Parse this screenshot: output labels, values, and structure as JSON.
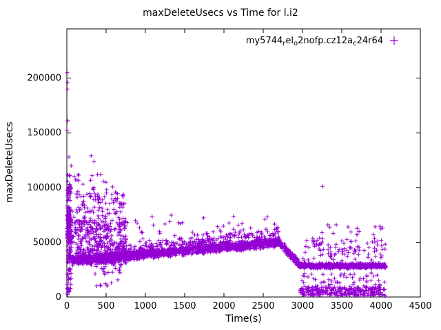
{
  "chart_data": {
    "type": "scatter",
    "title": "maxDeleteUsecs vs Time for l.i2",
    "xlabel": "Time(s)",
    "ylabel": "maxDeleteUsecs",
    "xlim": [
      0,
      4500
    ],
    "ylim": [
      0,
      245000
    ],
    "xticks": [
      0,
      500,
      1000,
      1500,
      2000,
      2500,
      3000,
      3500,
      4000,
      4500
    ],
    "yticks": [
      0,
      50000,
      100000,
      150000,
      200000
    ],
    "grid": false,
    "legend_position": "top-right-inside",
    "series": [
      {
        "name": "my5744_rel_o2nofp.cz12a_c24r64",
        "label_parts": [
          {
            "t": "my5744",
            "sub": false
          },
          {
            "t": "r",
            "sub": true
          },
          {
            "t": "el",
            "sub": false
          },
          {
            "t": "o",
            "sub": true
          },
          {
            "t": "2nofp.cz12a",
            "sub": false
          },
          {
            "t": "c",
            "sub": true
          },
          {
            "t": "24r64",
            "sub": false
          }
        ],
        "marker": "plus",
        "color": "#9400d3",
        "rng_seed": 42,
        "outlier_points": [
          [
            4,
            205000
          ],
          [
            9,
            196000
          ],
          [
            6,
            190000
          ],
          [
            12,
            161000
          ],
          [
            3,
            152000
          ],
          [
            27,
            128000
          ],
          [
            55,
            120000
          ],
          [
            95,
            110000
          ],
          [
            130,
            107000
          ],
          [
            205,
            103000
          ],
          [
            310,
            129000
          ],
          [
            345,
            124000
          ],
          [
            430,
            112000
          ],
          [
            505,
            98000
          ],
          [
            620,
            96000
          ],
          [
            1470,
            68000
          ],
          [
            2230,
            67000
          ],
          [
            2520,
            71000
          ],
          [
            3255,
            101000
          ],
          [
            3430,
            66000
          ],
          [
            3580,
            64000
          ],
          [
            3720,
            60000
          ],
          [
            3900,
            57000
          ],
          [
            4020,
            63000
          ]
        ],
        "density_bands": [
          {
            "x_min": 2,
            "x_max": 55,
            "y_min": 2000,
            "y_max": 112000,
            "count": 130
          },
          {
            "x_min": 2,
            "x_max": 55,
            "y_min": 55000,
            "y_max": 75000,
            "count": 60
          },
          {
            "x_min": 20,
            "x_max": 760,
            "y_min": 30000,
            "y_max": 70000,
            "count": 320
          },
          {
            "x_min": 60,
            "x_max": 760,
            "y_min": 60000,
            "y_max": 95000,
            "count": 130
          },
          {
            "x_min": 100,
            "x_max": 600,
            "y_min": 90000,
            "y_max": 112000,
            "count": 22
          },
          {
            "x_min": 300,
            "x_max": 700,
            "y_min": 20000,
            "y_max": 32000,
            "count": 25
          },
          {
            "x_min": 350,
            "x_max": 650,
            "y_min": 9000,
            "y_max": 16000,
            "count": 8
          },
          {
            "x_min": 60,
            "x_max": 2700,
            "y_start": 33000,
            "y_end": 50000,
            "spread": 5000,
            "count": 1500
          },
          {
            "x_min": 60,
            "x_max": 2700,
            "y_start": 38000,
            "y_end": 58000,
            "spread": 9000,
            "count": 350
          },
          {
            "x_min": 760,
            "x_max": 2700,
            "y_min": 58000,
            "y_max": 76000,
            "count": 30
          },
          {
            "x_min": 2700,
            "x_max": 2960,
            "y_start": 50000,
            "y_end": 30000,
            "spread": 4000,
            "count": 150
          },
          {
            "x_min": 2960,
            "x_max": 4060,
            "y_start": 28500,
            "y_end": 28500,
            "spread": 2800,
            "count": 620
          },
          {
            "x_min": 2960,
            "x_max": 4060,
            "y_min": 1000,
            "y_max": 9000,
            "count": 260
          },
          {
            "x_min": 2960,
            "x_max": 4060,
            "y_min": 9000,
            "y_max": 22000,
            "count": 60
          },
          {
            "x_min": 3000,
            "x_max": 4060,
            "y_min": 33000,
            "y_max": 52000,
            "count": 90
          },
          {
            "x_min": 3050,
            "x_max": 4060,
            "y_min": 52000,
            "y_max": 66000,
            "count": 16
          }
        ]
      }
    ]
  }
}
